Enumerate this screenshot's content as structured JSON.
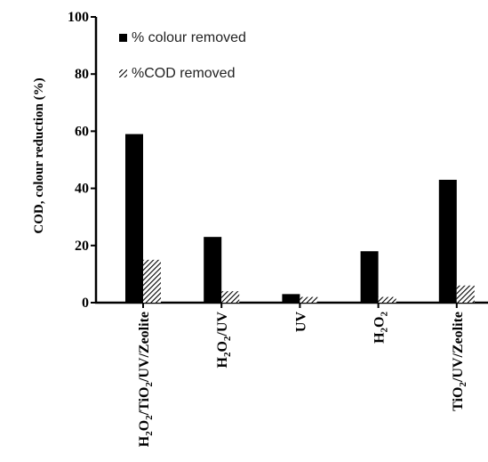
{
  "chart_data": {
    "type": "bar",
    "ylabel": "COD, colour reduction (%)",
    "xlabel": "",
    "ylim": [
      0,
      100
    ],
    "yticks": [
      0,
      20,
      40,
      60,
      80,
      100
    ],
    "categories": [
      [
        {
          "t": "H"
        },
        {
          "t": "2",
          "sub": true
        },
        {
          "t": "O"
        },
        {
          "t": "2",
          "sub": true
        },
        {
          "t": "/TiO"
        },
        {
          "t": "2",
          "sub": true
        },
        {
          "t": "/UV/Zeolite"
        }
      ],
      [
        {
          "t": "H"
        },
        {
          "t": "2",
          "sub": true
        },
        {
          "t": "O"
        },
        {
          "t": "2",
          "sub": true
        },
        {
          "t": "/UV"
        }
      ],
      [
        {
          "t": "UV"
        }
      ],
      [
        {
          "t": "H"
        },
        {
          "t": "2",
          "sub": true
        },
        {
          "t": "O"
        },
        {
          "t": "2",
          "sub": true
        }
      ],
      [
        {
          "t": "TiO"
        },
        {
          "t": "2",
          "sub": true
        },
        {
          "t": "/UV/Zeolite"
        }
      ]
    ],
    "series": [
      {
        "name": "% colour removed",
        "values": [
          59,
          23,
          3,
          18,
          43
        ],
        "fill": "solid",
        "color": "#000000"
      },
      {
        "name": "%COD removed",
        "values": [
          15,
          4,
          2,
          2,
          6
        ],
        "fill": "hatched",
        "color": "#000000"
      }
    ],
    "legend_position": "top-left",
    "grid": false
  }
}
